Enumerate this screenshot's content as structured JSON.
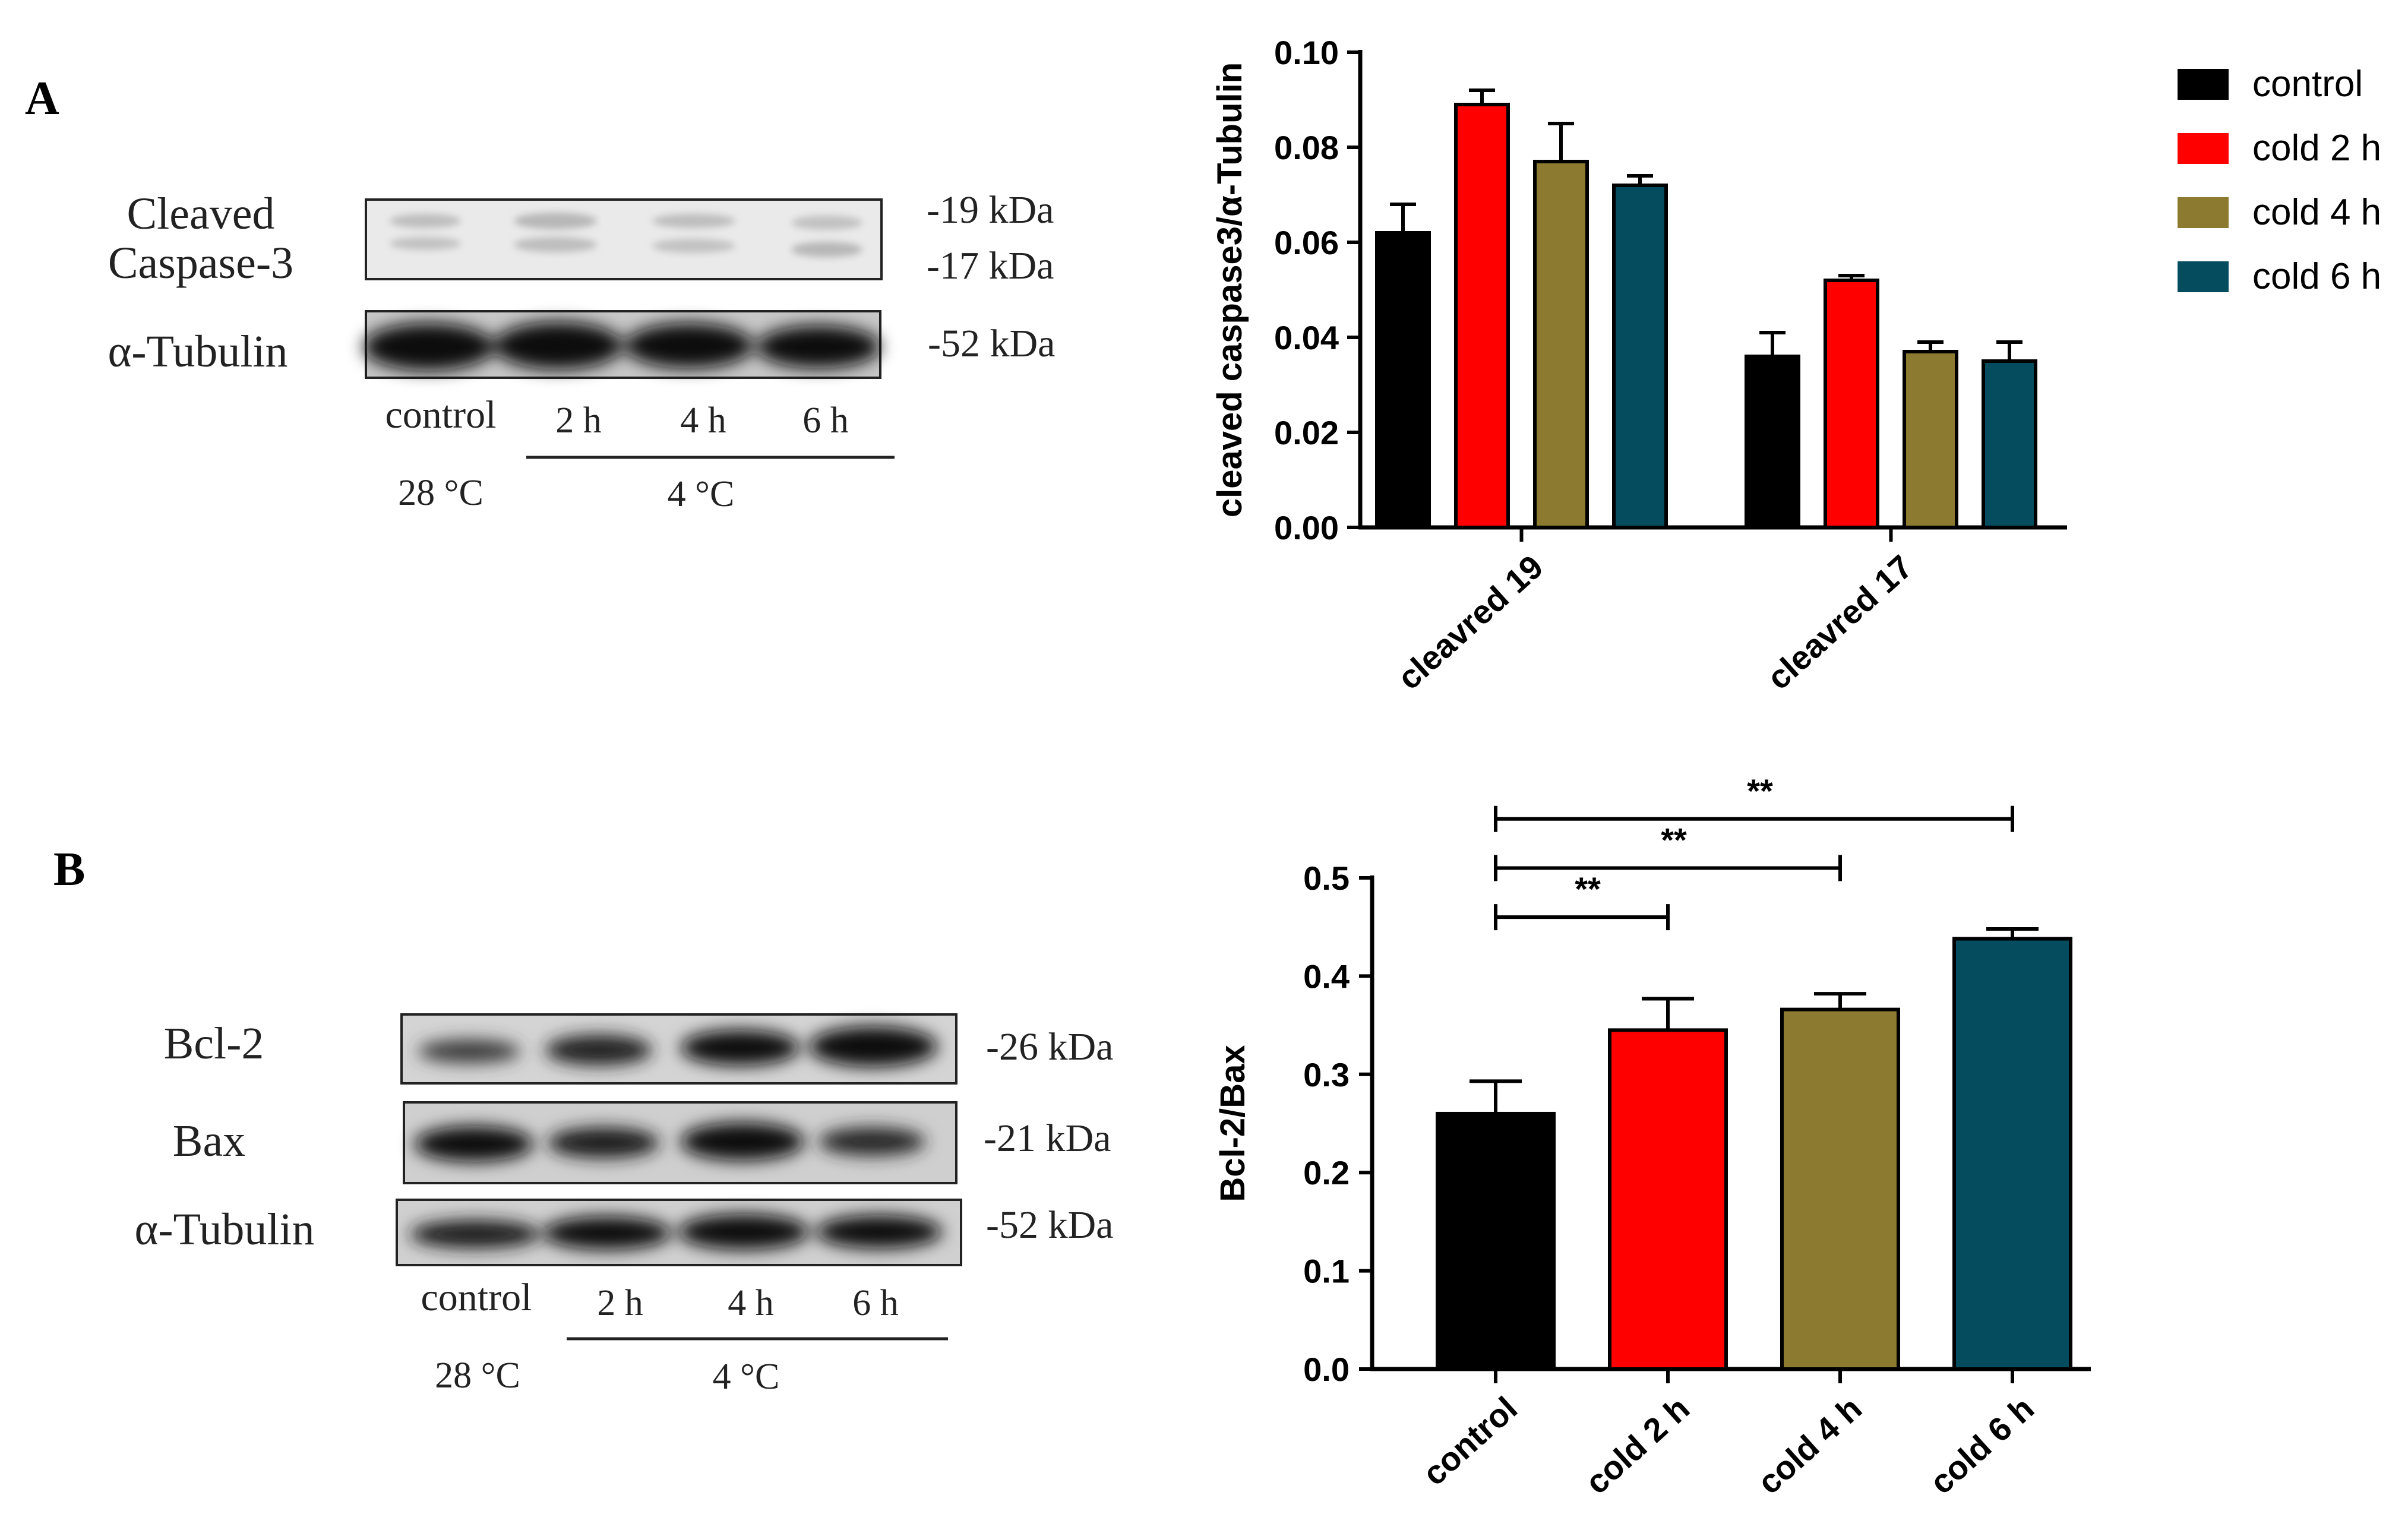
{
  "panels": {
    "a_label": "A",
    "b_label": "B"
  },
  "blot_a": {
    "rows": [
      "Cleaved",
      "Caspase-3",
      "α-Tubulin"
    ],
    "sizes": [
      "-19 kDa",
      "-17 kDa",
      "-52 kDa"
    ],
    "lanes": [
      "control",
      "2 h",
      "4 h",
      "6 h"
    ],
    "temps": [
      "28 °C",
      "4 °C"
    ]
  },
  "blot_b": {
    "rows": [
      "Bcl-2",
      "Bax",
      "α-Tubulin"
    ],
    "sizes": [
      "-26 kDa",
      "-21 kDa",
      "-52 kDa"
    ],
    "lanes": [
      "control",
      "2 h",
      "4 h",
      "6 h"
    ],
    "temps": [
      "28 °C",
      "4 °C"
    ]
  },
  "legend": [
    "control",
    "cold 2 h",
    "cold 4 h",
    "cold 6 h"
  ],
  "colors": {
    "control": "#000000",
    "cold_2h": "#ff0000",
    "cold_4h": "#8b7a2f",
    "cold_6h": "#054c5f"
  },
  "chart_data": [
    {
      "type": "bar",
      "title": "",
      "xlabel": "",
      "ylabel": "cleaved caspase3/α-Tubulin",
      "categories": [
        "cleavred 19",
        "cleavred 17"
      ],
      "ylim": [
        0,
        0.1
      ],
      "yticks": [
        "0.00",
        "0.02",
        "0.04",
        "0.06",
        "0.08",
        "0.10"
      ],
      "series": [
        {
          "name": "control",
          "values": [
            0.062,
            0.036
          ],
          "errors": [
            0.006,
            0.005
          ]
        },
        {
          "name": "cold 2 h",
          "values": [
            0.089,
            0.052
          ],
          "errors": [
            0.003,
            0.001
          ]
        },
        {
          "name": "cold 4 h",
          "values": [
            0.077,
            0.037
          ],
          "errors": [
            0.008,
            0.002
          ]
        },
        {
          "name": "cold 6 h",
          "values": [
            0.072,
            0.035
          ],
          "errors": [
            0.002,
            0.004
          ]
        }
      ],
      "legend": "right"
    },
    {
      "type": "bar",
      "title": "",
      "xlabel": "",
      "ylabel": "Bcl-2/Bax",
      "categories": [
        "control",
        "cold 2 h",
        "cold 4 h",
        "cold 6 h"
      ],
      "values": [
        0.26,
        0.345,
        0.366,
        0.438
      ],
      "errors": [
        0.033,
        0.032,
        0.016,
        0.01
      ],
      "ylim": [
        0,
        0.5
      ],
      "yticks": [
        "0.0",
        "0.1",
        "0.2",
        "0.3",
        "0.4",
        "0.5"
      ],
      "significance": [
        {
          "from": "control",
          "to": "cold 2 h",
          "label": "**"
        },
        {
          "from": "control",
          "to": "cold 4 h",
          "label": "**"
        },
        {
          "from": "control",
          "to": "cold 6 h",
          "label": "**"
        }
      ]
    }
  ]
}
